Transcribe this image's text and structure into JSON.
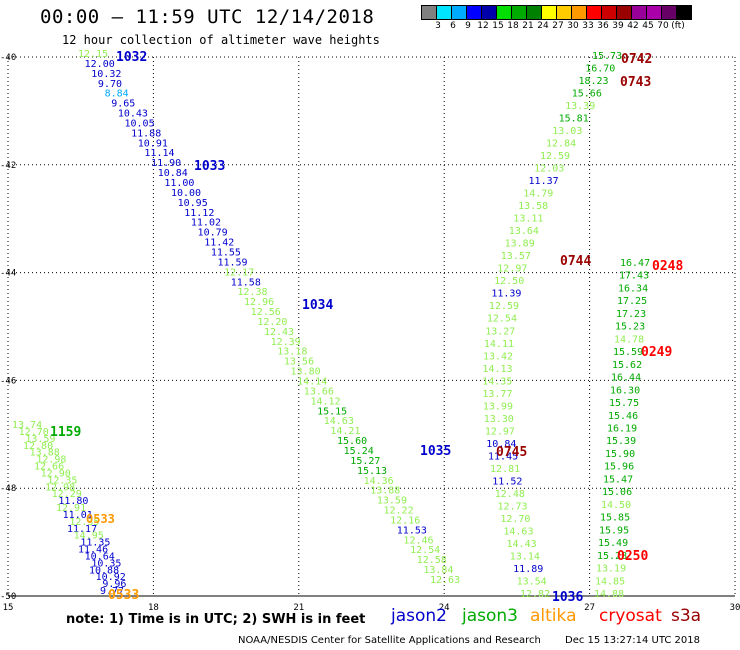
{
  "header": {
    "title": "00:00 – 11:59 UTC 12/14/2018",
    "subtitle": "12 hour collection of altimeter wave heights"
  },
  "color_scale": {
    "colors": [
      "#808080",
      "#00e5ff",
      "#00aaff",
      "#0000ff",
      "#0000aa",
      "#00dd00",
      "#00aa00",
      "#008000",
      "#ffff00",
      "#ffcc00",
      "#ff9900",
      "#ff0000",
      "#cc0000",
      "#990000",
      "#990099",
      "#aa00aa",
      "#660066",
      "#000000"
    ],
    "labels": [
      "3",
      "6",
      "9",
      "12",
      "15",
      "18",
      "21",
      "24",
      "27",
      "30",
      "33",
      "36",
      "39",
      "42",
      "45",
      "70",
      "(ft)"
    ]
  },
  "chart_data": {
    "type": "scatter",
    "x_ticks": [
      "15",
      "18",
      "21",
      "24",
      "27",
      "30"
    ],
    "y_ticks": [
      "-40",
      "-42",
      "-44",
      "-46",
      "-48",
      "-50"
    ],
    "xlim": [
      15,
      30
    ],
    "ylim": [
      -50,
      -40
    ],
    "tracks": [
      {
        "name": "track-1032",
        "values": [
          {
            "v": "12.15",
            "c": "#90ee50"
          },
          {
            "v": "12.00",
            "c": "#0000cc"
          },
          {
            "v": "10.32",
            "c": "#0000cc"
          },
          {
            "v": "9.70",
            "c": "#0000cc"
          },
          {
            "v": "8.84",
            "c": "#00aaff"
          },
          {
            "v": "9.65",
            "c": "#0000cc"
          },
          {
            "v": "10.43",
            "c": "#0000cc"
          },
          {
            "v": "10.05",
            "c": "#0000cc"
          },
          {
            "v": "11.88",
            "c": "#0000cc"
          },
          {
            "v": "10.91",
            "c": "#0000cc"
          },
          {
            "v": "11.14",
            "c": "#0000cc"
          },
          {
            "v": "11.90",
            "c": "#0000cc"
          },
          {
            "v": "10.84",
            "c": "#0000cc"
          },
          {
            "v": "11.00",
            "c": "#0000cc"
          },
          {
            "v": "10.00",
            "c": "#0000cc"
          },
          {
            "v": "10.95",
            "c": "#0000cc"
          },
          {
            "v": "11.12",
            "c": "#0000cc"
          },
          {
            "v": "11.02",
            "c": "#0000cc"
          },
          {
            "v": "10.79",
            "c": "#0000cc"
          },
          {
            "v": "11.42",
            "c": "#0000cc"
          },
          {
            "v": "11.55",
            "c": "#0000cc"
          },
          {
            "v": "11.59",
            "c": "#0000cc"
          },
          {
            "v": "12.17",
            "c": "#90ee50"
          },
          {
            "v": "11.58",
            "c": "#0000cc"
          },
          {
            "v": "12.38",
            "c": "#90ee50"
          },
          {
            "v": "12.96",
            "c": "#90ee50"
          },
          {
            "v": "12.56",
            "c": "#90ee50"
          },
          {
            "v": "12.20",
            "c": "#90ee50"
          },
          {
            "v": "12.43",
            "c": "#90ee50"
          },
          {
            "v": "12.39",
            "c": "#90ee50"
          },
          {
            "v": "13.18",
            "c": "#90ee50"
          },
          {
            "v": "13.56",
            "c": "#90ee50"
          },
          {
            "v": "13.80",
            "c": "#90ee50"
          },
          {
            "v": "14.14",
            "c": "#90ee50"
          },
          {
            "v": "13.66",
            "c": "#90ee50"
          },
          {
            "v": "14.12",
            "c": "#90ee50"
          },
          {
            "v": "15.15",
            "c": "#00aa00"
          },
          {
            "v": "14.63",
            "c": "#90ee50"
          },
          {
            "v": "14.21",
            "c": "#90ee50"
          },
          {
            "v": "15.60",
            "c": "#00aa00"
          },
          {
            "v": "15.24",
            "c": "#00aa00"
          },
          {
            "v": "15.27",
            "c": "#00aa00"
          },
          {
            "v": "15.13",
            "c": "#00aa00"
          },
          {
            "v": "14.36",
            "c": "#90ee50"
          },
          {
            "v": "13.88",
            "c": "#90ee50"
          },
          {
            "v": "13.59",
            "c": "#90ee50"
          },
          {
            "v": "12.22",
            "c": "#90ee50"
          },
          {
            "v": "12.16",
            "c": "#90ee50"
          },
          {
            "v": "11.53",
            "c": "#0000cc"
          },
          {
            "v": "12.46",
            "c": "#90ee50"
          },
          {
            "v": "12.54",
            "c": "#90ee50"
          },
          {
            "v": "12.58",
            "c": "#90ee50"
          },
          {
            "v": "13.84",
            "c": "#90ee50"
          },
          {
            "v": "12.63",
            "c": "#90ee50"
          }
        ]
      },
      {
        "name": "track-0744",
        "values": [
          {
            "v": "15.73",
            "c": "#00aa00"
          },
          {
            "v": "16.70",
            "c": "#00aa00"
          },
          {
            "v": "18.23",
            "c": "#00aa00"
          },
          {
            "v": "15.66",
            "c": "#00aa00"
          },
          {
            "v": "13.39",
            "c": "#90ee50"
          },
          {
            "v": "15.81",
            "c": "#00aa00"
          },
          {
            "v": "13.03",
            "c": "#90ee50"
          },
          {
            "v": "12.84",
            "c": "#90ee50"
          },
          {
            "v": "12.59",
            "c": "#90ee50"
          },
          {
            "v": "12.03",
            "c": "#90ee50"
          },
          {
            "v": "11.37",
            "c": "#0000cc"
          },
          {
            "v": "14.79",
            "c": "#90ee50"
          },
          {
            "v": "13.58",
            "c": "#90ee50"
          },
          {
            "v": "13.11",
            "c": "#90ee50"
          },
          {
            "v": "13.64",
            "c": "#90ee50"
          },
          {
            "v": "13.89",
            "c": "#90ee50"
          },
          {
            "v": "13.57",
            "c": "#90ee50"
          },
          {
            "v": "12.97",
            "c": "#90ee50"
          },
          {
            "v": "12.50",
            "c": "#90ee50"
          },
          {
            "v": "11.39",
            "c": "#0000cc"
          },
          {
            "v": "12.59",
            "c": "#90ee50"
          },
          {
            "v": "12.54",
            "c": "#90ee50"
          },
          {
            "v": "13.27",
            "c": "#90ee50"
          },
          {
            "v": "14.11",
            "c": "#90ee50"
          },
          {
            "v": "13.42",
            "c": "#90ee50"
          },
          {
            "v": "14.13",
            "c": "#90ee50"
          },
          {
            "v": "14.35",
            "c": "#90ee50"
          },
          {
            "v": "13.77",
            "c": "#90ee50"
          },
          {
            "v": "13.99",
            "c": "#90ee50"
          },
          {
            "v": "13.30",
            "c": "#90ee50"
          },
          {
            "v": "12.97",
            "c": "#90ee50"
          },
          {
            "v": "10.84",
            "c": "#0000cc"
          },
          {
            "v": "11.45",
            "c": "#0000cc"
          },
          {
            "v": "12.81",
            "c": "#90ee50"
          },
          {
            "v": "11.52",
            "c": "#0000cc"
          },
          {
            "v": "12.48",
            "c": "#90ee50"
          },
          {
            "v": "12.73",
            "c": "#90ee50"
          },
          {
            "v": "12.70",
            "c": "#90ee50"
          },
          {
            "v": "14.63",
            "c": "#90ee50"
          },
          {
            "v": "14.43",
            "c": "#90ee50"
          },
          {
            "v": "13.14",
            "c": "#90ee50"
          },
          {
            "v": "11.89",
            "c": "#0000cc"
          },
          {
            "v": "13.54",
            "c": "#90ee50"
          },
          {
            "v": "12.82",
            "c": "#90ee50"
          }
        ]
      },
      {
        "name": "track-0248",
        "values": [
          {
            "v": "16.47",
            "c": "#00aa00"
          },
          {
            "v": "17.43",
            "c": "#00aa00"
          },
          {
            "v": "16.34",
            "c": "#00aa00"
          },
          {
            "v": "17.25",
            "c": "#00aa00"
          },
          {
            "v": "17.23",
            "c": "#00aa00"
          },
          {
            "v": "15.23",
            "c": "#00aa00"
          },
          {
            "v": "14.78",
            "c": "#90ee50"
          },
          {
            "v": "15.59",
            "c": "#00aa00"
          },
          {
            "v": "15.62",
            "c": "#00aa00"
          },
          {
            "v": "16.44",
            "c": "#00aa00"
          },
          {
            "v": "16.30",
            "c": "#00aa00"
          },
          {
            "v": "15.75",
            "c": "#00aa00"
          },
          {
            "v": "15.46",
            "c": "#00aa00"
          },
          {
            "v": "16.19",
            "c": "#00aa00"
          },
          {
            "v": "15.39",
            "c": "#00aa00"
          },
          {
            "v": "15.90",
            "c": "#00aa00"
          },
          {
            "v": "15.96",
            "c": "#00aa00"
          },
          {
            "v": "15.47",
            "c": "#00aa00"
          },
          {
            "v": "15.06",
            "c": "#00aa00"
          },
          {
            "v": "14.50",
            "c": "#90ee50"
          },
          {
            "v": "15.85",
            "c": "#00aa00"
          },
          {
            "v": "15.95",
            "c": "#00aa00"
          },
          {
            "v": "15.49",
            "c": "#00aa00"
          },
          {
            "v": "15.28",
            "c": "#00aa00"
          },
          {
            "v": "13.19",
            "c": "#90ee50"
          },
          {
            "v": "14.85",
            "c": "#90ee50"
          },
          {
            "v": "14.88",
            "c": "#90ee50"
          }
        ]
      },
      {
        "name": "track-1159",
        "values": [
          {
            "v": "13.74",
            "c": "#90ee50"
          },
          {
            "v": "12.70",
            "c": "#90ee50"
          },
          {
            "v": "13.59",
            "c": "#90ee50"
          },
          {
            "v": "12.80",
            "c": "#90ee50"
          },
          {
            "v": "13.88",
            "c": "#90ee50"
          },
          {
            "v": "12.98",
            "c": "#90ee50"
          },
          {
            "v": "12.66",
            "c": "#90ee50"
          },
          {
            "v": "12.90",
            "c": "#90ee50"
          },
          {
            "v": "12.35",
            "c": "#90ee50"
          },
          {
            "v": "12.98",
            "c": "#90ee50"
          },
          {
            "v": "12.29",
            "c": "#90ee50"
          },
          {
            "v": "11.80",
            "c": "#0000cc"
          },
          {
            "v": "12.91",
            "c": "#90ee50"
          },
          {
            "v": "11.01",
            "c": "#0000cc"
          },
          {
            "v": "12.35",
            "c": "#90ee50"
          },
          {
            "v": "11.17",
            "c": "#0000cc"
          },
          {
            "v": "14.95",
            "c": "#90ee50"
          },
          {
            "v": "11.35",
            "c": "#0000cc"
          },
          {
            "v": "11.46",
            "c": "#0000cc"
          },
          {
            "v": "10.64",
            "c": "#0000cc"
          },
          {
            "v": "10.35",
            "c": "#0000cc"
          },
          {
            "v": "10.88",
            "c": "#0000cc"
          },
          {
            "v": "10.92",
            "c": "#0000cc"
          },
          {
            "v": "9.96",
            "c": "#0000cc"
          },
          {
            "v": "9.77",
            "c": "#0000cc"
          }
        ]
      },
      {
        "name": "track-altika",
        "values": [
          {
            "v": "0533",
            "c": "#ff9900"
          },
          {
            "v": "0533",
            "c": "#ff9900"
          }
        ]
      }
    ],
    "time_labels": [
      {
        "t": "1032",
        "c": "#0000cc"
      },
      {
        "t": "1033",
        "c": "#0000cc"
      },
      {
        "t": "1034",
        "c": "#0000cc"
      },
      {
        "t": "1035",
        "c": "#0000cc"
      },
      {
        "t": "1036",
        "c": "#0000cc"
      },
      {
        "t": "0742",
        "c": "#990000"
      },
      {
        "t": "0743",
        "c": "#990000"
      },
      {
        "t": "0744",
        "c": "#990000"
      },
      {
        "t": "0745",
        "c": "#990000"
      },
      {
        "t": "0248",
        "c": "#ff0000"
      },
      {
        "t": "0249",
        "c": "#ff0000"
      },
      {
        "t": "0250",
        "c": "#ff0000"
      },
      {
        "t": "1159",
        "c": "#00aa00"
      },
      {
        "t": "0533",
        "c": "#ff9900"
      }
    ]
  },
  "legend": {
    "items": [
      {
        "name": "jason2",
        "color": "#0000cc"
      },
      {
        "name": "jason3",
        "color": "#00aa00"
      },
      {
        "name": "altika",
        "color": "#ff9900"
      },
      {
        "name": "cryosat",
        "color": "#ff0000"
      },
      {
        "name": "s3a",
        "color": "#990000"
      }
    ]
  },
  "footer": {
    "note": "note: 1) Time is in UTC; 2) SWH is in feet",
    "credit": "NOAA/NESDIS Center for Satellite Applications and Research",
    "timestamp": "Dec 15 13:27:14 UTC 2018"
  }
}
